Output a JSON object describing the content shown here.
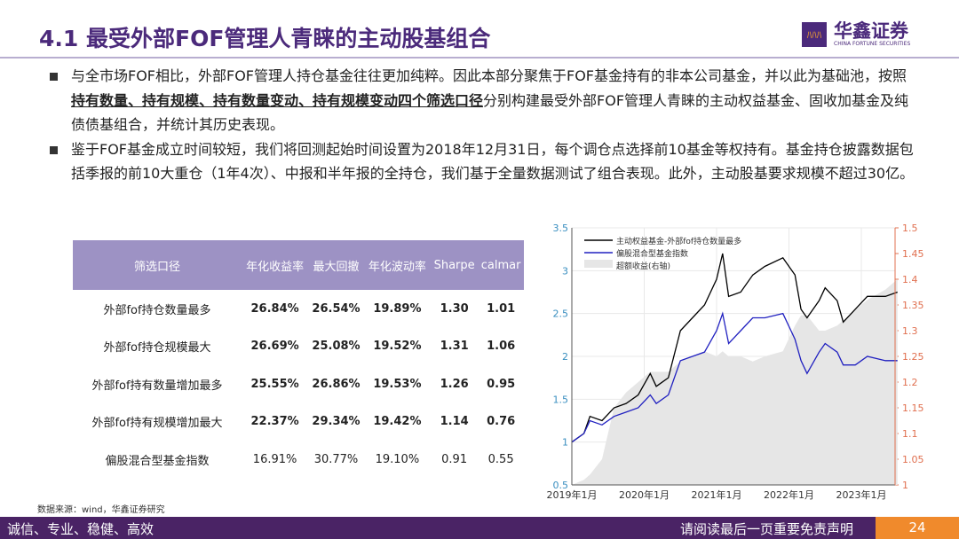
{
  "header": {
    "title": "4.1  最受外部FOF管理人青睐的主动股基组合",
    "logo_cn": "华鑫证券",
    "logo_en": "CHINA FORTUNE SECURITIES"
  },
  "bullets": [
    {
      "pre": "与全市场FOF相比，外部FOF管理人持仓基金往往更加纯粹。因此本部分聚焦于FOF基金持有的非本公司基金，并以此为基础池，按照",
      "bold": "持有数量、持有规模、持有数量变动、持有规模变动四个筛选口径",
      "post": "分别构建最受外部FOF管理人青睐的主动权益基金、固收加基金及纯债债基组合，并统计其历史表现。"
    },
    {
      "pre": "鉴于FOF基金成立时间较短，我们将回测起始时间设置为2018年12月31日，每个调仓点选择前10基金等权持有。基金持仓披露数据包括季报的前10大重仓（1年4次）、中报和半年报的全持仓，我们基于全量数据测试了组合表现。此外，主动股基要求规模不超过30亿。",
      "bold": "",
      "post": ""
    }
  ],
  "table": {
    "headers": [
      "筛选口径",
      "年化收益率",
      "最大回撤",
      "年化波动率",
      "Sharpe",
      "calmar"
    ],
    "rows": [
      [
        "外部fof持仓数量最多",
        "26.84%",
        "26.54%",
        "19.89%",
        "1.30",
        "1.01"
      ],
      [
        "外部fof持仓规模最大",
        "26.69%",
        "25.08%",
        "19.52%",
        "1.31",
        "1.06"
      ],
      [
        "外部fof持有数量增加最多",
        "25.55%",
        "26.86%",
        "19.53%",
        "1.26",
        "0.95"
      ],
      [
        "外部fof持有规模增加最大",
        "22.37%",
        "29.34%",
        "19.42%",
        "1.14",
        "0.76"
      ],
      [
        "偏股混合型基金指数",
        "16.91%",
        "30.77%",
        "19.10%",
        "0.91",
        "0.55"
      ]
    ]
  },
  "source": "数据来源：wind，华鑫证券研究",
  "footer": {
    "left": "诚信、专业、稳健、高效",
    "right": "请阅读最后一页重要免责声明",
    "page": "24"
  },
  "chart_data": {
    "type": "line",
    "x": [
      "2019-01",
      "2019-03",
      "2019-04",
      "2019-06",
      "2019-08",
      "2019-10",
      "2019-12",
      "2020-02",
      "2020-03",
      "2020-05",
      "2020-07",
      "2020-09",
      "2020-11",
      "2021-01",
      "2021-02",
      "2021-03",
      "2021-05",
      "2021-07",
      "2021-09",
      "2021-12",
      "2022-02",
      "2022-03",
      "2022-04",
      "2022-06",
      "2022-07",
      "2022-09",
      "2022-10",
      "2022-12",
      "2023-02",
      "2023-05",
      "2023-07"
    ],
    "series": [
      {
        "name": "主动权益基金-外部fof持仓数量最多",
        "axis": "left",
        "color": "#000000",
        "values": [
          1.0,
          1.1,
          1.3,
          1.25,
          1.4,
          1.45,
          1.55,
          1.8,
          1.65,
          1.75,
          2.3,
          2.45,
          2.6,
          2.9,
          3.2,
          2.7,
          2.75,
          2.95,
          3.05,
          3.15,
          2.95,
          2.55,
          2.45,
          2.65,
          2.8,
          2.65,
          2.4,
          2.55,
          2.7,
          2.7,
          2.75
        ]
      },
      {
        "name": "偏股混合型基金指数",
        "axis": "left",
        "color": "#2020c0",
        "values": [
          1.0,
          1.1,
          1.25,
          1.2,
          1.3,
          1.35,
          1.4,
          1.55,
          1.45,
          1.55,
          1.95,
          2.0,
          2.05,
          2.3,
          2.5,
          2.15,
          2.3,
          2.45,
          2.45,
          2.5,
          2.2,
          1.95,
          1.8,
          2.05,
          2.15,
          2.05,
          1.9,
          1.9,
          2.0,
          1.95,
          1.95
        ]
      },
      {
        "name": "超额收益(右轴)",
        "axis": "right",
        "type": "area",
        "color": "#e6e6e6",
        "values": [
          1.0,
          1.01,
          1.02,
          1.05,
          1.15,
          1.18,
          1.2,
          1.22,
          1.22,
          1.22,
          1.24,
          1.25,
          1.26,
          1.25,
          1.26,
          1.25,
          1.25,
          1.24,
          1.25,
          1.26,
          1.31,
          1.33,
          1.33,
          1.3,
          1.3,
          1.31,
          1.32,
          1.34,
          1.36,
          1.38,
          1.4
        ]
      }
    ],
    "x_ticks": [
      "2019年1月",
      "2020年1月",
      "2021年1月",
      "2022年1月",
      "2023年1月"
    ],
    "ylim": [
      0.5,
      3.5
    ],
    "y_ticks": [
      "0.5",
      "1",
      "1.5",
      "2",
      "2.5",
      "3",
      "3.5"
    ],
    "y2lim": [
      1,
      1.5
    ],
    "y2_ticks": [
      "1",
      "1.05",
      "1.1",
      "1.15",
      "1.2",
      "1.25",
      "1.3",
      "1.35",
      "1.4",
      "1.45",
      "1.5"
    ],
    "grid": true,
    "legend": "top-left"
  }
}
